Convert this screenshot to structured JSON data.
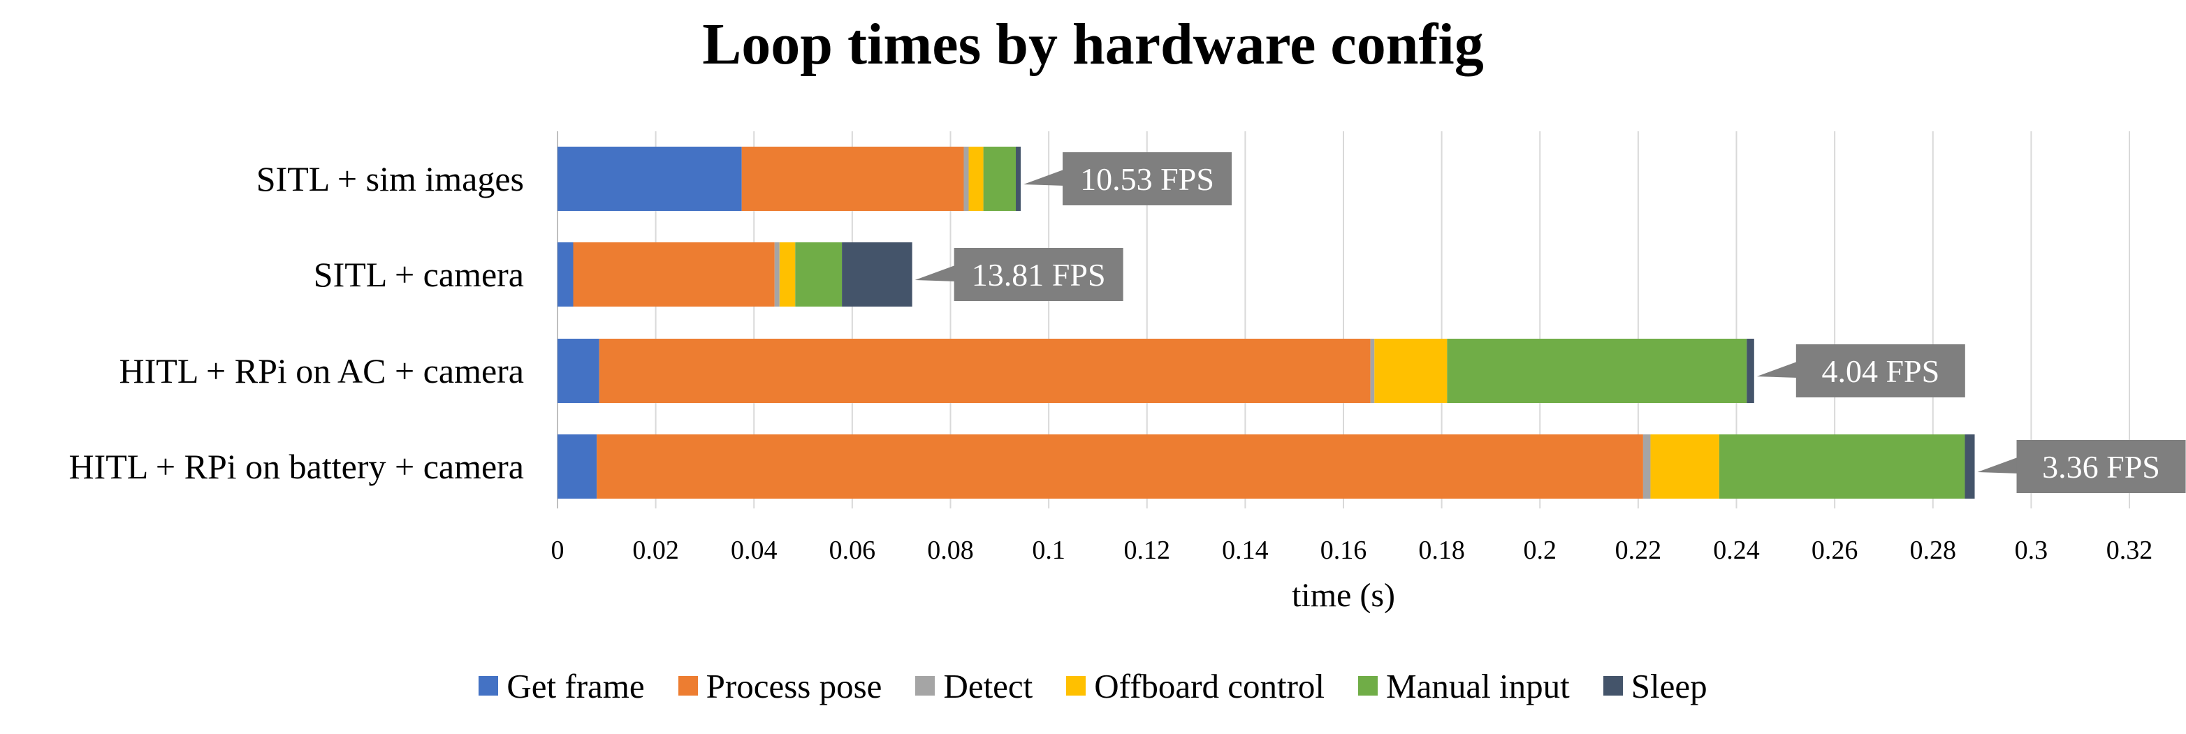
{
  "chart_data": {
    "type": "bar",
    "orientation": "horizontal",
    "stacked": true,
    "title": "Loop times by hardware config",
    "xlabel": "time (s)",
    "ylabel": "",
    "xlim": [
      0,
      0.32
    ],
    "xticks": [
      "0",
      "0.02",
      "0.04",
      "0.06",
      "0.08",
      "0.1",
      "0.12",
      "0.14",
      "0.16",
      "0.18",
      "0.2",
      "0.22",
      "0.24",
      "0.26",
      "0.28",
      "0.3",
      "0.32"
    ],
    "grid": "vertical",
    "legend_position": "bottom",
    "categories": [
      "SITL + sim images",
      "SITL + camera",
      "HITL + RPi on AC + camera",
      "HITL + RPi on battery + camera"
    ],
    "series": [
      {
        "name": "Get frame",
        "color": "#4472C4",
        "values": [
          0.0375,
          0.0032,
          0.0085,
          0.008
        ]
      },
      {
        "name": "Process pose",
        "color": "#ED7D31",
        "values": [
          0.0452,
          0.041,
          0.157,
          0.213
        ]
      },
      {
        "name": "Detect",
        "color": "#A5A5A5",
        "values": [
          0.001,
          0.001,
          0.0008,
          0.0015
        ]
      },
      {
        "name": "Offboard control",
        "color": "#FFC000",
        "values": [
          0.003,
          0.0032,
          0.0148,
          0.014
        ]
      },
      {
        "name": "Manual input",
        "color": "#70AD47",
        "values": [
          0.0066,
          0.0095,
          0.061,
          0.05
        ]
      },
      {
        "name": "Sleep",
        "color": "#44546A",
        "values": [
          0.001,
          0.0143,
          0.0015,
          0.002
        ]
      }
    ],
    "data_labels": [
      "10.53 FPS",
      "13.81 FPS",
      "4.04 FPS",
      "3.36 FPS"
    ],
    "data_label_color": "#7F7F7F"
  }
}
